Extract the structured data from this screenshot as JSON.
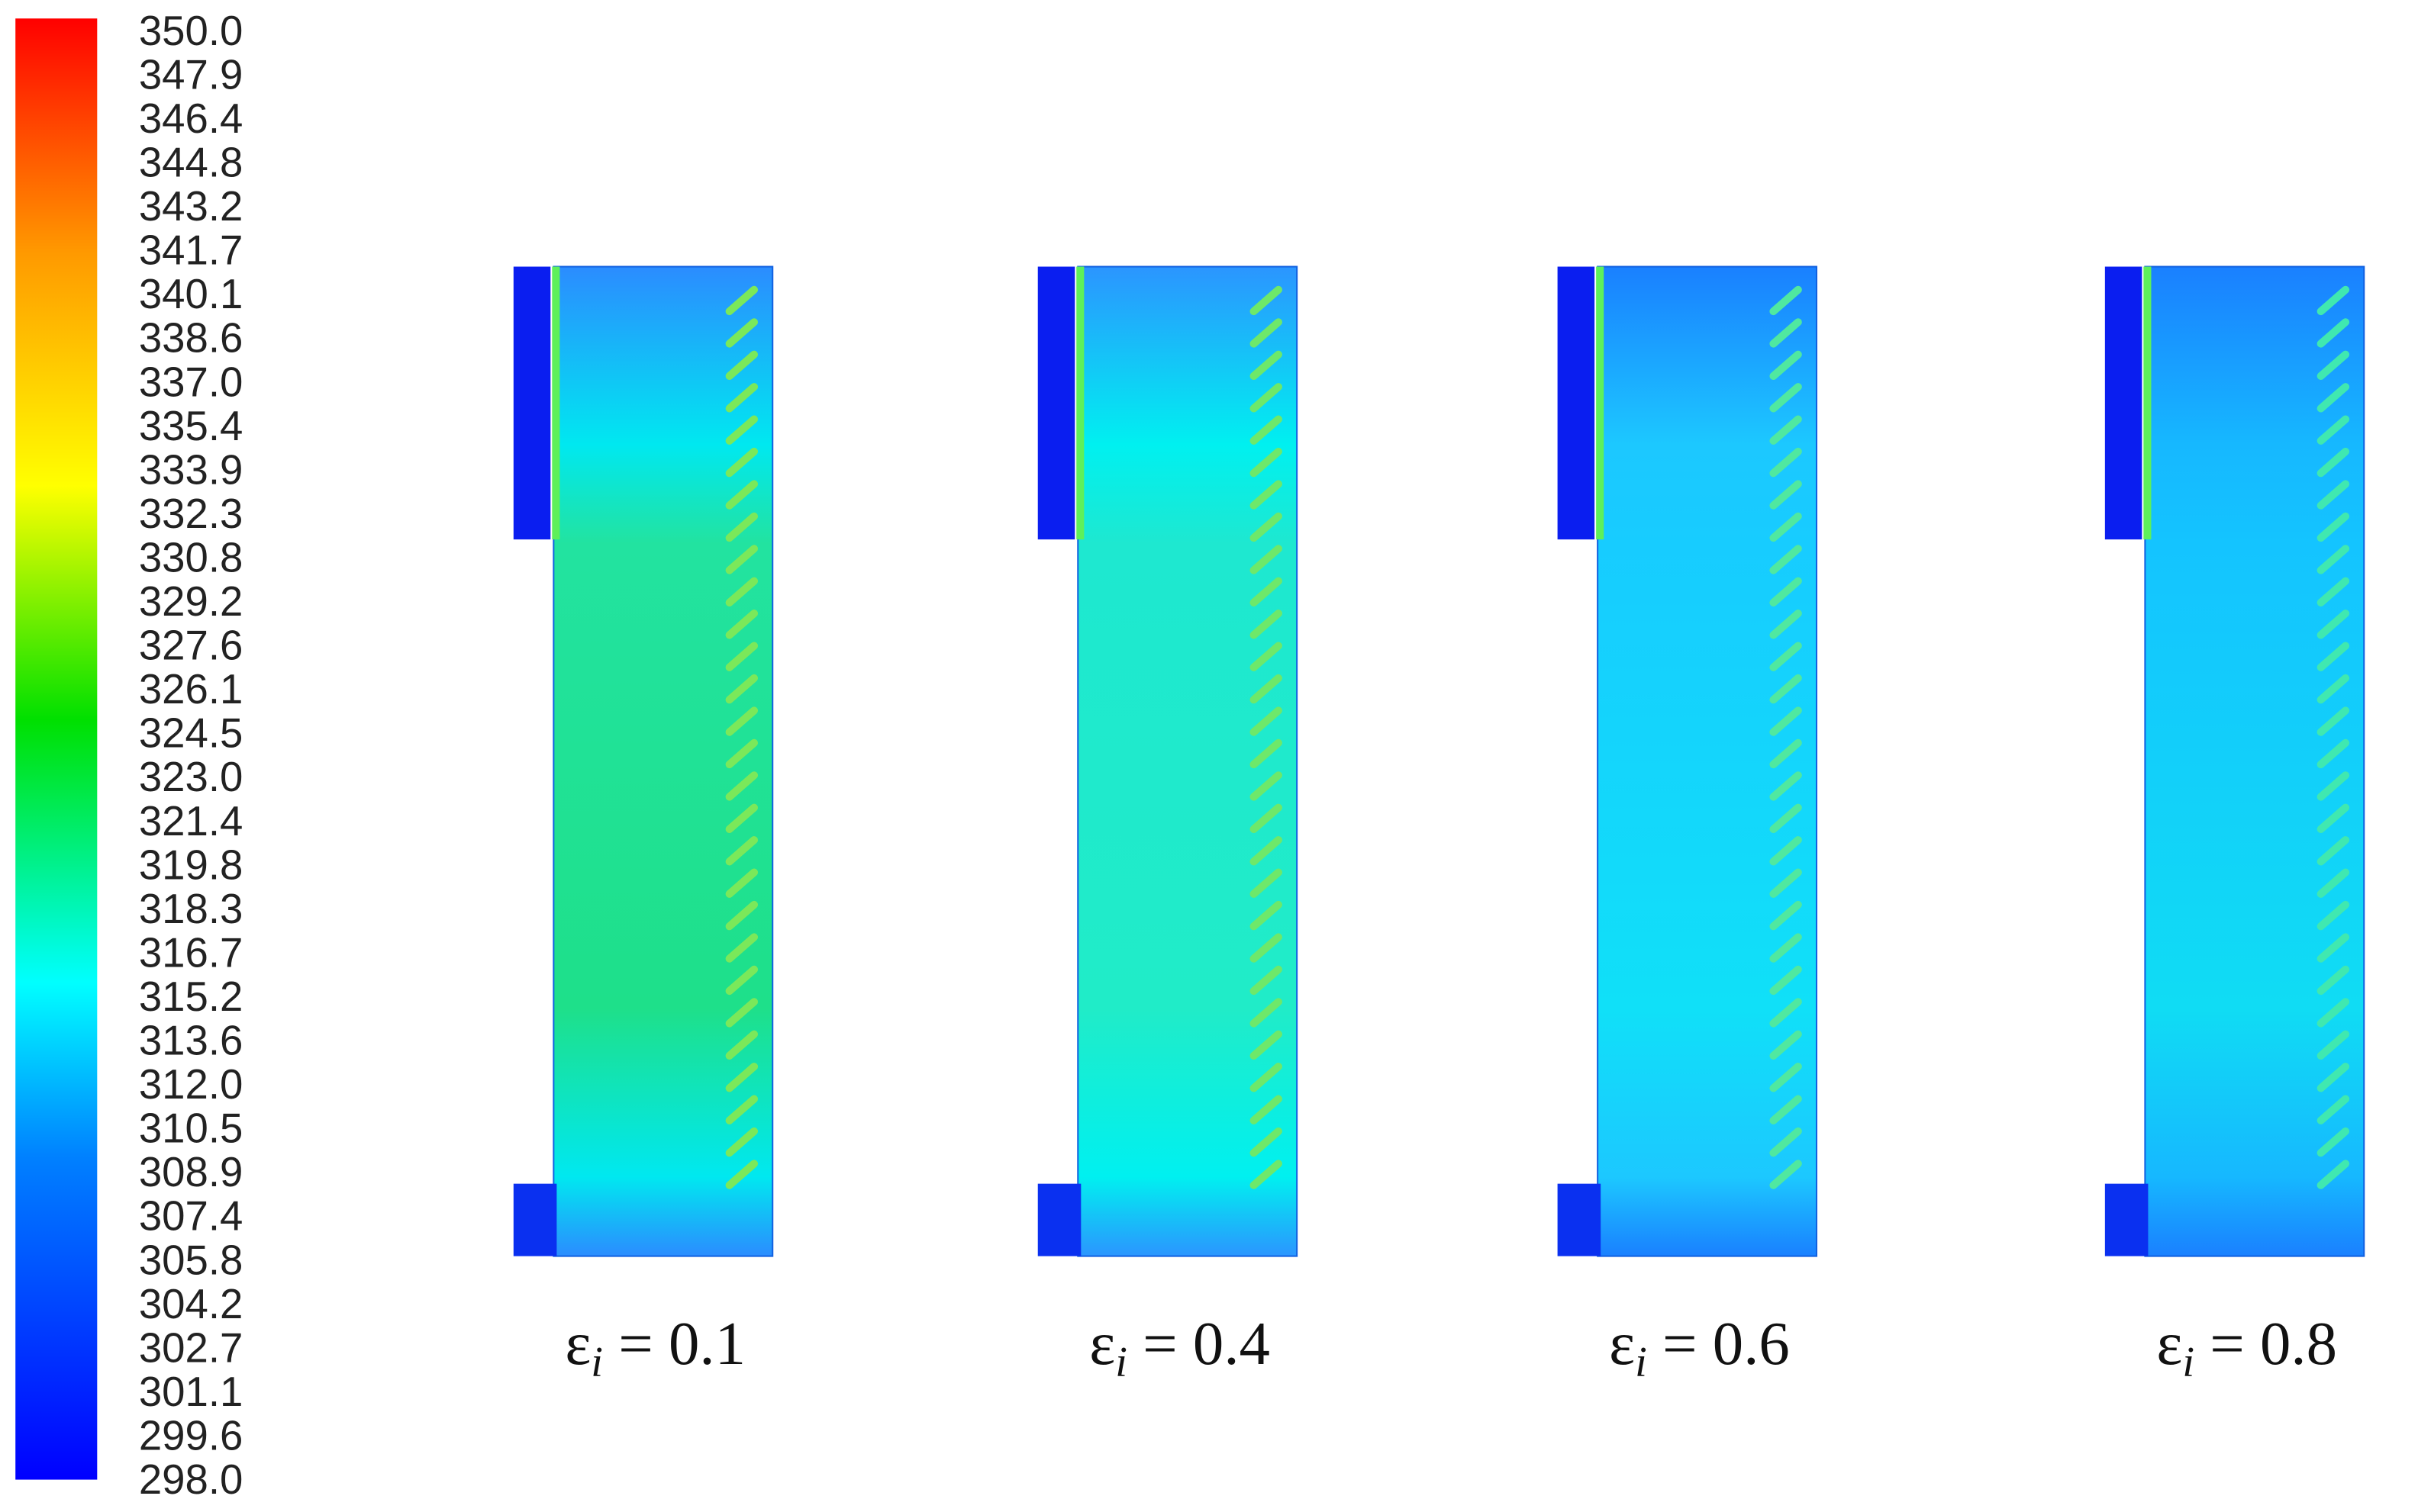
{
  "colorbar": {
    "labels": [
      "350.0",
      "347.9",
      "346.4",
      "344.8",
      "343.2",
      "341.7",
      "340.1",
      "338.6",
      "337.0",
      "335.4",
      "333.9",
      "332.3",
      "330.8",
      "329.2",
      "327.6",
      "326.1",
      "324.5",
      "323.0",
      "321.4",
      "319.8",
      "318.3",
      "316.7",
      "315.2",
      "313.6",
      "312.0",
      "310.5",
      "308.9",
      "307.4",
      "305.8",
      "304.2",
      "302.7",
      "301.1",
      "299.6",
      "298.0"
    ]
  },
  "panels": [
    {
      "symbol": "ε",
      "subscript": "i",
      "relation": "=",
      "value": "0.1"
    },
    {
      "symbol": "ε",
      "subscript": "i",
      "relation": "=",
      "value": "0.4"
    },
    {
      "symbol": "ε",
      "subscript": "i",
      "relation": "=",
      "value": "0.6"
    },
    {
      "symbol": "ε",
      "subscript": "i",
      "relation": "=",
      "value": "0.8"
    }
  ]
}
